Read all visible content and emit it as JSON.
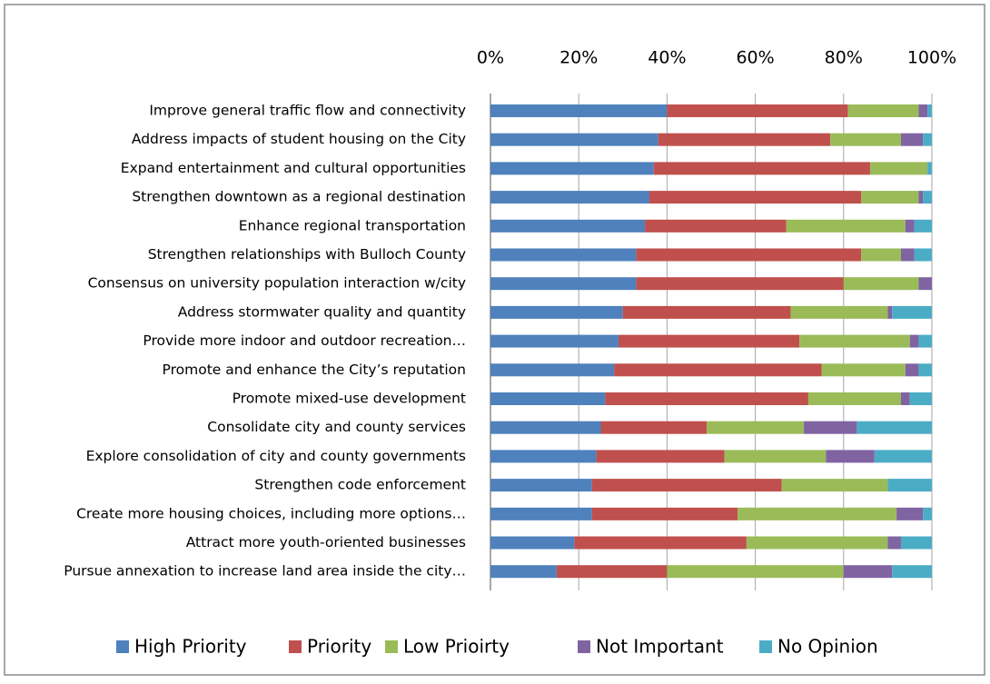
{
  "chart_data": {
    "type": "stacked-barh",
    "categories": [
      "Improve general traffic flow and connectivity",
      "Address impacts of student housing on the City",
      "Expand entertainment and cultural opportunities",
      "Strengthen downtown as a regional destination",
      "Enhance regional transportation",
      "Strengthen relationships with Bulloch County",
      "Consensus on university population interaction w/city",
      "Address stormwater quality and quantity",
      "Provide more indoor and outdoor recreation…",
      "Promote and enhance the City’s reputation",
      "Promote mixed-use development",
      "Consolidate city and county services",
      "Explore consolidation of city and county governments",
      "Strengthen code enforcement",
      "Create more housing choices, including more options…",
      "Attract more youth-oriented businesses",
      "Pursue annexation to increase land area inside the city…"
    ],
    "series": [
      {
        "name": "High Priority",
        "color": "#4f81bd",
        "values": [
          40,
          38,
          37,
          36,
          35,
          33,
          33,
          30,
          29,
          28,
          26,
          25,
          24,
          23,
          23,
          19,
          15
        ]
      },
      {
        "name": "Priority",
        "color": "#c0504d",
        "values": [
          41,
          39,
          49,
          48,
          32,
          51,
          47,
          38,
          41,
          47,
          46,
          24,
          29,
          43,
          33,
          39,
          25
        ]
      },
      {
        "name": "Low Prioirty",
        "color": "#9bbb59",
        "values": [
          16,
          16,
          13,
          13,
          27,
          9,
          17,
          22,
          25,
          19,
          21,
          22,
          23,
          24,
          36,
          32,
          40
        ]
      },
      {
        "name": "Not Important",
        "color": "#8064a2",
        "values": [
          2,
          5,
          0,
          1,
          2,
          3,
          3,
          1,
          2,
          3,
          2,
          12,
          11,
          0,
          6,
          3,
          11
        ]
      },
      {
        "name": "No Opinion",
        "color": "#4bacc6",
        "values": [
          1,
          2,
          1,
          2,
          4,
          4,
          0,
          9,
          3,
          3,
          5,
          17,
          13,
          10,
          2,
          7,
          9
        ]
      }
    ],
    "xlim": [
      0,
      100
    ],
    "xticks": [
      {
        "value": 0,
        "label": "0%"
      },
      {
        "value": 20,
        "label": "20%"
      },
      {
        "value": 40,
        "label": "40%"
      },
      {
        "value": 60,
        "label": "60%"
      },
      {
        "value": 80,
        "label": "80%"
      },
      {
        "value": 100,
        "label": "100%"
      }
    ],
    "grid": true,
    "legend": "bottom"
  }
}
